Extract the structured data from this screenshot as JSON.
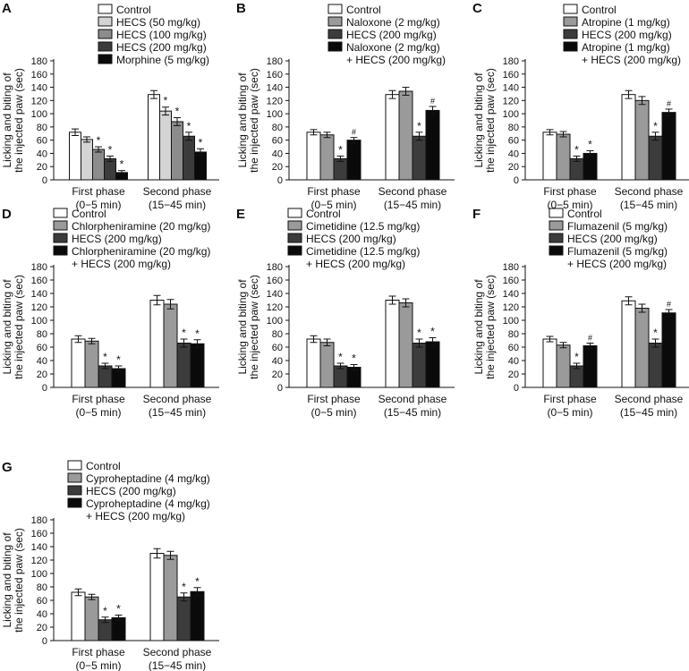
{
  "figure": {
    "ylabel_line1": "Licking and biting of",
    "ylabel_line2": "the injected paw (sec)",
    "categories": [
      {
        "line1": "First phase",
        "line2": "(0−5 min)"
      },
      {
        "line1": "Second phase",
        "line2": "(15−45 min)"
      }
    ],
    "colors": {
      "Control": "#ffffff",
      "light_gray": "#d4d4d4",
      "mid_gray": "#9a9a9a",
      "dark_gray": "#3c3c3c",
      "black": "#0a0a0a"
    }
  },
  "chart_data": [
    {
      "type": "bar",
      "panel": "A",
      "ylim": [
        0,
        180
      ],
      "yticks": [
        0,
        20,
        40,
        60,
        80,
        100,
        120,
        140,
        160,
        180
      ],
      "categories": [
        "First phase (0−5 min)",
        "Second phase (15−45 min)"
      ],
      "ylabel": "Licking and biting of the injected paw (sec)",
      "series": [
        {
          "name": "Control",
          "color": "#ffffff",
          "values": [
            72,
            129
          ],
          "errors": [
            5,
            6
          ],
          "marks": [
            "",
            ""
          ]
        },
        {
          "name": "HECS (50 mg/kg)",
          "color": "#d4d4d4",
          "values": [
            61,
            104
          ],
          "errors": [
            4,
            6
          ],
          "marks": [
            "",
            "*"
          ]
        },
        {
          "name": "HECS (100 mg/kg)",
          "color": "#8c8c8c",
          "values": [
            46,
            88
          ],
          "errors": [
            4,
            6
          ],
          "marks": [
            "*",
            "*"
          ]
        },
        {
          "name": "HECS (200 mg/kg)",
          "color": "#3c3c3c",
          "values": [
            32,
            66
          ],
          "errors": [
            4,
            6
          ],
          "marks": [
            "*",
            "*"
          ]
        },
        {
          "name": "Morphine (5 mg/kg)",
          "color": "#0a0a0a",
          "values": [
            11,
            42
          ],
          "errors": [
            3,
            5
          ],
          "marks": [
            "*",
            "*"
          ]
        }
      ]
    },
    {
      "type": "bar",
      "panel": "B",
      "ylim": [
        0,
        180
      ],
      "yticks": [
        0,
        20,
        40,
        60,
        80,
        100,
        120,
        140,
        160,
        180
      ],
      "categories": [
        "First phase (0−5 min)",
        "Second phase (15−45 min)"
      ],
      "ylabel": "Licking and biting of the injected paw (sec)",
      "series": [
        {
          "name": "Control",
          "color": "#ffffff",
          "values": [
            72,
            129
          ],
          "errors": [
            4,
            6
          ],
          "marks": [
            "",
            ""
          ]
        },
        {
          "name": "Naloxone (2 mg/kg)",
          "color": "#9a9a9a",
          "values": [
            68,
            134
          ],
          "errors": [
            4,
            6
          ],
          "marks": [
            "",
            ""
          ]
        },
        {
          "name": "HECS (200 mg/kg)",
          "color": "#3c3c3c",
          "values": [
            32,
            66
          ],
          "errors": [
            4,
            6
          ],
          "marks": [
            "*",
            "*"
          ]
        },
        {
          "name": "Naloxone (2 mg/kg)",
          "name2": "+ HECS (200 mg/kg)",
          "color": "#0a0a0a",
          "values": [
            60,
            105
          ],
          "errors": [
            4,
            6
          ],
          "marks": [
            "#",
            "#"
          ]
        }
      ]
    },
    {
      "type": "bar",
      "panel": "C",
      "ylim": [
        0,
        180
      ],
      "yticks": [
        0,
        20,
        40,
        60,
        80,
        100,
        120,
        140,
        160,
        180
      ],
      "categories": [
        "First phase (0−5 min)",
        "Second phase (15−45 min)"
      ],
      "ylabel": "Licking and biting of the injected paw (sec)",
      "series": [
        {
          "name": "Control",
          "color": "#ffffff",
          "values": [
            72,
            129
          ],
          "errors": [
            4,
            6
          ],
          "marks": [
            "",
            ""
          ]
        },
        {
          "name": "Atropine (1 mg/kg)",
          "color": "#9a9a9a",
          "values": [
            69,
            120
          ],
          "errors": [
            4,
            6
          ],
          "marks": [
            "",
            ""
          ]
        },
        {
          "name": "HECS (200 mg/kg)",
          "color": "#3c3c3c",
          "values": [
            32,
            66
          ],
          "errors": [
            4,
            6
          ],
          "marks": [
            "*",
            "*"
          ]
        },
        {
          "name": "Atropine (1 mg/kg)",
          "name2": "+ HECS (200 mg/kg)",
          "color": "#0a0a0a",
          "values": [
            40,
            102
          ],
          "errors": [
            4,
            5
          ],
          "marks": [
            "*",
            "#"
          ]
        }
      ]
    },
    {
      "type": "bar",
      "panel": "D",
      "ylim": [
        0,
        180
      ],
      "yticks": [
        0,
        20,
        40,
        60,
        80,
        100,
        120,
        140,
        160,
        180
      ],
      "categories": [
        "First phase (0−5 min)",
        "Second phase (15−45 min)"
      ],
      "ylabel": "Licking and biting of the injected paw (sec)",
      "series": [
        {
          "name": "Control",
          "color": "#ffffff",
          "values": [
            72,
            130
          ],
          "errors": [
            5,
            7
          ],
          "marks": [
            "",
            ""
          ]
        },
        {
          "name": "Chlorpheniramine (20 mg/kg)",
          "color": "#9a9a9a",
          "values": [
            69,
            124
          ],
          "errors": [
            4,
            7
          ],
          "marks": [
            "",
            ""
          ]
        },
        {
          "name": "HECS (200 mg/kg)",
          "color": "#3c3c3c",
          "values": [
            32,
            66
          ],
          "errors": [
            4,
            6
          ],
          "marks": [
            "*",
            "*"
          ]
        },
        {
          "name": "Chlorpheniramine (20 mg/kg)",
          "name2": "+ HECS (200 mg/kg)",
          "color": "#0a0a0a",
          "values": [
            28,
            65
          ],
          "errors": [
            4,
            6
          ],
          "marks": [
            "*",
            "*"
          ]
        }
      ]
    },
    {
      "type": "bar",
      "panel": "E",
      "ylim": [
        0,
        180
      ],
      "yticks": [
        0,
        20,
        40,
        60,
        80,
        100,
        120,
        140,
        160,
        180
      ],
      "categories": [
        "First phase (0−5 min)",
        "Second phase (15−45 min)"
      ],
      "ylabel": "Licking and biting of the injected paw (sec)",
      "series": [
        {
          "name": "Control",
          "color": "#ffffff",
          "values": [
            72,
            130
          ],
          "errors": [
            5,
            6
          ],
          "marks": [
            "",
            ""
          ]
        },
        {
          "name": "Cimetidine (12.5 mg/kg)",
          "color": "#9a9a9a",
          "values": [
            67,
            126
          ],
          "errors": [
            5,
            6
          ],
          "marks": [
            "",
            ""
          ]
        },
        {
          "name": "HECS (200 mg/kg)",
          "color": "#3c3c3c",
          "values": [
            32,
            66
          ],
          "errors": [
            4,
            6
          ],
          "marks": [
            "*",
            "*"
          ]
        },
        {
          "name": "Cimetidine (12.5 mg/kg)",
          "name2": "+ HECS (200 mg/kg)",
          "color": "#0a0a0a",
          "values": [
            30,
            68
          ],
          "errors": [
            4,
            6
          ],
          "marks": [
            "*",
            "*"
          ]
        }
      ]
    },
    {
      "type": "bar",
      "panel": "F",
      "ylim": [
        0,
        180
      ],
      "yticks": [
        0,
        20,
        40,
        60,
        80,
        100,
        120,
        140,
        160,
        180
      ],
      "categories": [
        "First phase (0−5 min)",
        "Second phase (15−45 min)"
      ],
      "ylabel": "Licking and biting of the injected paw (sec)",
      "series": [
        {
          "name": "Control",
          "color": "#ffffff",
          "values": [
            72,
            129
          ],
          "errors": [
            4,
            6
          ],
          "marks": [
            "",
            ""
          ]
        },
        {
          "name": "Flumazenil (5 mg/kg)",
          "color": "#9a9a9a",
          "values": [
            63,
            118
          ],
          "errors": [
            4,
            6
          ],
          "marks": [
            "",
            ""
          ]
        },
        {
          "name": "HECS (200 mg/kg)",
          "color": "#3c3c3c",
          "values": [
            32,
            66
          ],
          "errors": [
            4,
            6
          ],
          "marks": [
            "*",
            "*"
          ]
        },
        {
          "name": "Flumazenil (5 mg/kg)",
          "name2": "+ HECS (200 mg/kg)",
          "color": "#0a0a0a",
          "values": [
            62,
            111
          ],
          "errors": [
            4,
            5
          ],
          "marks": [
            "#",
            "#"
          ]
        }
      ]
    },
    {
      "type": "bar",
      "panel": "G",
      "ylim": [
        0,
        180
      ],
      "yticks": [
        0,
        20,
        40,
        60,
        80,
        100,
        120,
        140,
        160,
        180
      ],
      "categories": [
        "First phase (0−5 min)",
        "Second phase (15−45 min)"
      ],
      "ylabel": "Licking and biting of the injected paw (sec)",
      "series": [
        {
          "name": "Control",
          "color": "#ffffff",
          "values": [
            72,
            130
          ],
          "errors": [
            5,
            7
          ],
          "marks": [
            "",
            ""
          ]
        },
        {
          "name": "Cyproheptadine (4 mg/kg)",
          "color": "#9a9a9a",
          "values": [
            65,
            127
          ],
          "errors": [
            4,
            6
          ],
          "marks": [
            "",
            ""
          ]
        },
        {
          "name": "HECS (200 mg/kg)",
          "color": "#3c3c3c",
          "values": [
            31,
            65
          ],
          "errors": [
            4,
            6
          ],
          "marks": [
            "*",
            "*"
          ]
        },
        {
          "name": "Cyproheptadine (4 mg/kg)",
          "name2": "+ HECS (200 mg/kg)",
          "color": "#0a0a0a",
          "values": [
            34,
            73
          ],
          "errors": [
            4,
            6
          ],
          "marks": [
            "*",
            "*"
          ]
        }
      ]
    }
  ]
}
